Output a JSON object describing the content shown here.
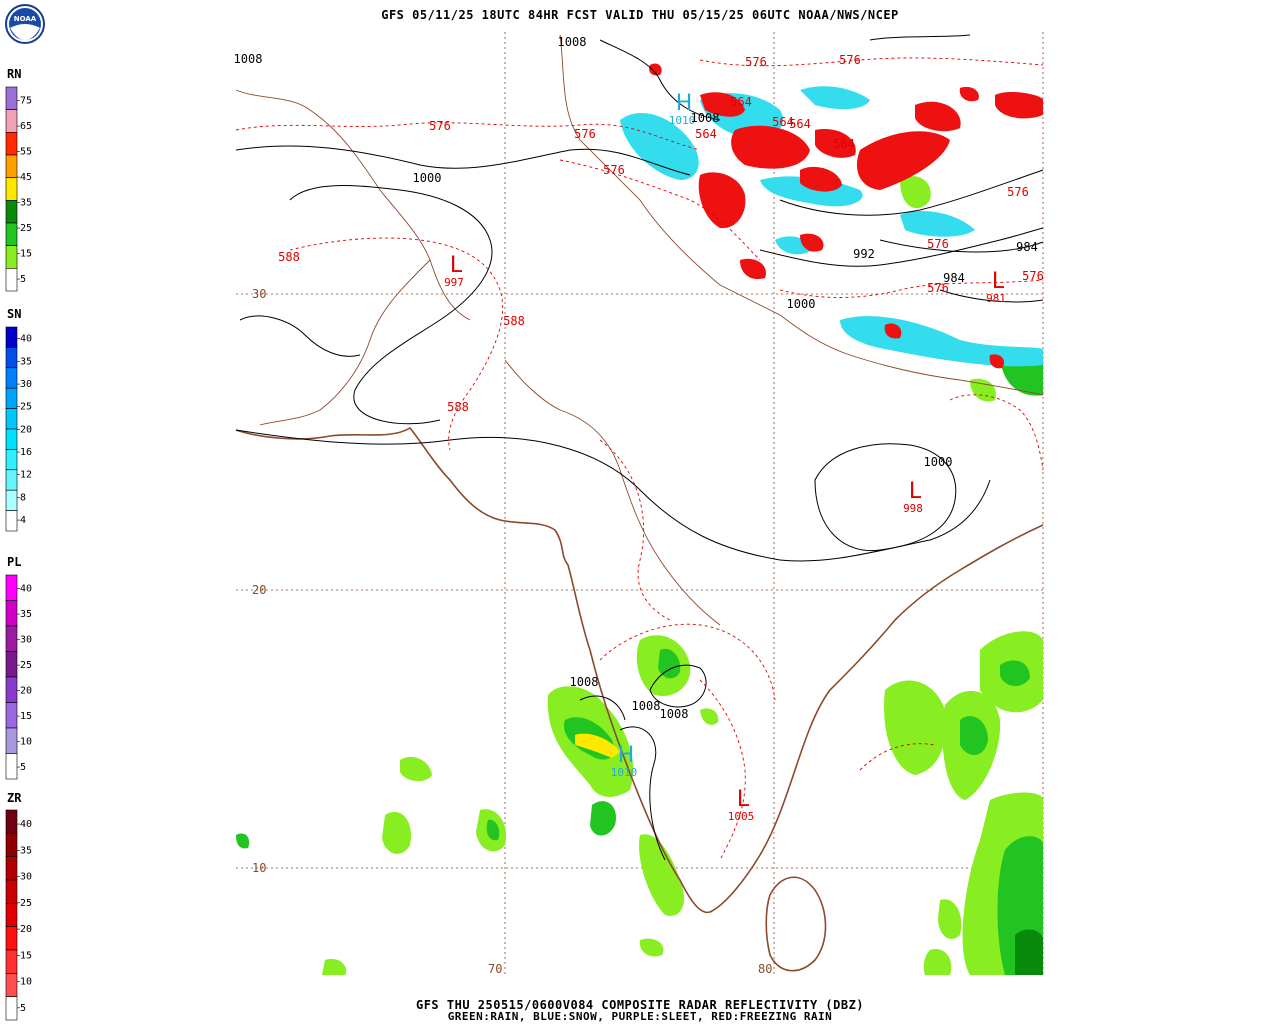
{
  "header": {
    "title": "GFS 05/11/25 18UTC 84HR FCST VALID THU 05/15/25 06UTC NOAA/NWS/NCEP",
    "footer_line1": "GFS THU 250515/0600V084 COMPOSITE RADAR REFLECTIVITY (DBZ)",
    "footer_line2": "GREEN:RAIN, BLUE:SNOW, PURPLE:SLEET, RED:FREEZING RAIN"
  },
  "logo": {
    "text": "NOAA"
  },
  "legends": [
    {
      "label": "RN",
      "ticks": [
        "75",
        "65",
        "55",
        "45",
        "35",
        "25",
        "15",
        "5"
      ],
      "colors": [
        "#9a6fd6",
        "#f0a3b5",
        "#ff2a00",
        "#ffa000",
        "#ffe800",
        "#0a8a0a",
        "#22c422",
        "#88ee22",
        "#ffffff"
      ]
    },
    {
      "label": "SN",
      "ticks": [
        "40",
        "35",
        "30",
        "25",
        "20",
        "16",
        "12",
        "8",
        "4"
      ],
      "colors": [
        "#0000c8",
        "#0050e6",
        "#0080ff",
        "#00a4ff",
        "#00c8ff",
        "#00e0ff",
        "#33eeff",
        "#66f4ff",
        "#aaffff",
        "#ffffff"
      ]
    },
    {
      "label": "PL",
      "ticks": [
        "40",
        "35",
        "30",
        "25",
        "20",
        "15",
        "10",
        "5"
      ],
      "colors": [
        "#ff00ff",
        "#d000c8",
        "#9a1aa0",
        "#7a1a8a",
        "#8a3acc",
        "#9a68e0",
        "#a898e0",
        "#ffffff"
      ]
    },
    {
      "label": "ZR",
      "ticks": [
        "40",
        "35",
        "30",
        "25",
        "20",
        "15",
        "10",
        "5"
      ],
      "colors": [
        "#700010",
        "#900000",
        "#b00000",
        "#c80000",
        "#e00000",
        "#ff1010",
        "#ff3030",
        "#ff5050",
        "#ffffff"
      ]
    }
  ],
  "map": {
    "lat_labels": [
      "30",
      "20",
      "10"
    ],
    "lon_labels": [
      "70",
      "80"
    ],
    "pressure_centers": [
      {
        "type": "H",
        "value": "1010",
        "color": "#22aadd"
      },
      {
        "type": "H",
        "value": "1010",
        "color": "#22aadd"
      },
      {
        "type": "L",
        "value": "997",
        "color": "#e00000"
      },
      {
        "type": "L",
        "value": "981",
        "color": "#e00000"
      },
      {
        "type": "L",
        "value": "998",
        "color": "#e00000"
      },
      {
        "type": "L",
        "value": "1005",
        "color": "#e00000"
      }
    ],
    "isobar_labels": [
      "1008",
      "1008",
      "1000",
      "1000",
      "992",
      "984",
      "984",
      "1000",
      "1008",
      "1008",
      "1008",
      "1008"
    ],
    "thickness_labels": [
      "576",
      "576",
      "576",
      "576",
      "576",
      "576",
      "576",
      "576",
      "576",
      "588",
      "588",
      "588",
      "564",
      "564",
      "564",
      "564",
      "564"
    ],
    "colors": {
      "rain_light": "#88ee22",
      "rain_mid": "#22c422",
      "rain_dark": "#0a8a0a",
      "snow": "#33ddee",
      "freezing_rain": "#ee1111",
      "isobar": "#000000",
      "thickness": "#e00000",
      "coast": "#8b4a2b",
      "grid": "#8b4a2b"
    }
  }
}
